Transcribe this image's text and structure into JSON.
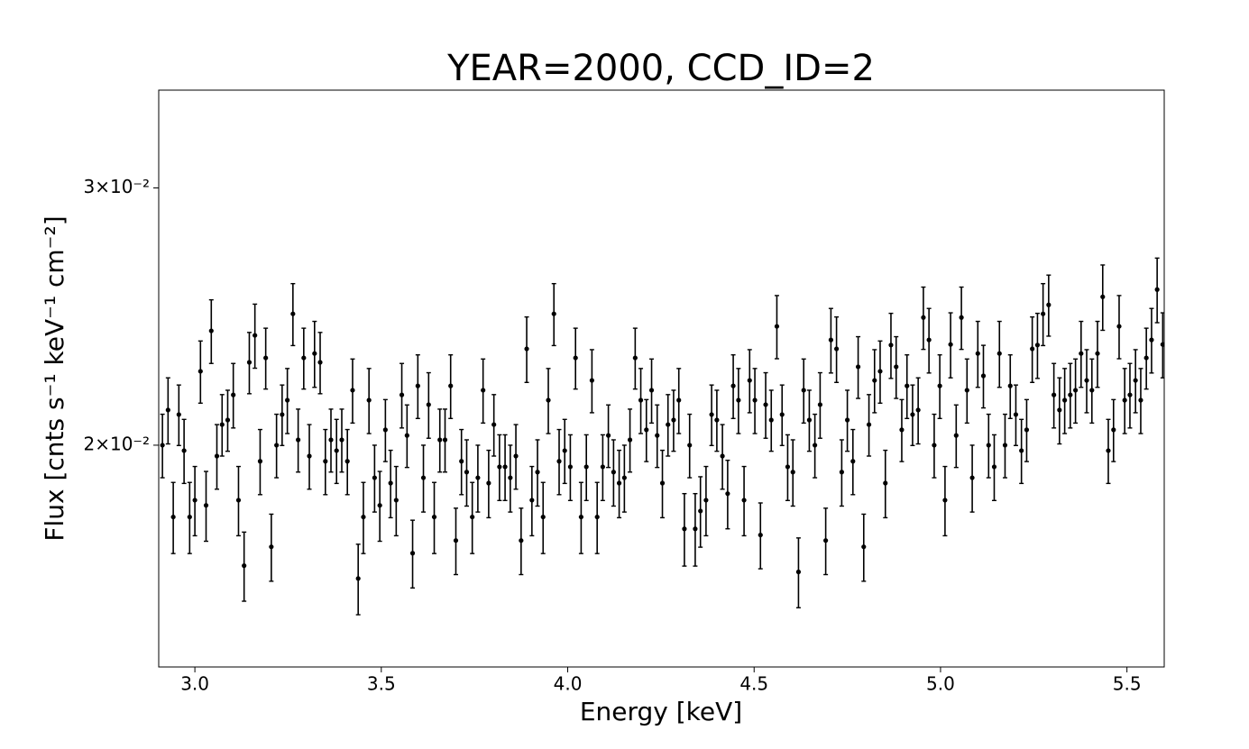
{
  "chart_data": {
    "type": "errorbar",
    "title": "YEAR=2000, CCD_ID=2",
    "xlabel": "Energy [keV]",
    "ylabel": "Flux [cnts s⁻¹ keV⁻¹ cm⁻²]",
    "yscale": "log",
    "color": "#000000",
    "xlim": [
      2.903,
      5.6
    ],
    "ylim": [
      0.0141,
      0.035
    ],
    "xticks": [
      {
        "value": 3,
        "label": "3.0"
      },
      3.5,
      {
        "value": 4,
        "label": "4.0"
      },
      4.5,
      {
        "value": 5,
        "label": "5.0"
      },
      5.5
    ],
    "yticks": [
      {
        "value": 0.02,
        "label": "2×10⁻²"
      },
      {
        "value": 0.03,
        "label": "3×10⁻²"
      }
    ],
    "x": [
      2.913,
      2.928,
      2.942,
      2.957,
      2.971,
      2.986,
      3.0,
      3.015,
      3.03,
      3.044,
      3.059,
      3.073,
      3.088,
      3.103,
      3.117,
      3.132,
      3.146,
      3.161,
      3.175,
      3.19,
      3.205,
      3.219,
      3.234,
      3.248,
      3.263,
      3.277,
      3.292,
      3.307,
      3.321,
      3.336,
      3.35,
      3.365,
      3.38,
      3.394,
      3.409,
      3.423,
      3.438,
      3.452,
      3.467,
      3.482,
      3.496,
      3.511,
      3.525,
      3.54,
      3.555,
      3.569,
      3.584,
      3.598,
      3.613,
      3.627,
      3.642,
      3.657,
      3.671,
      3.686,
      3.7,
      3.715,
      3.729,
      3.744,
      3.759,
      3.773,
      3.788,
      3.802,
      3.817,
      3.832,
      3.846,
      3.861,
      3.875,
      3.89,
      3.904,
      3.919,
      3.934,
      3.948,
      3.963,
      3.977,
      3.992,
      4.007,
      4.021,
      4.036,
      4.05,
      4.065,
      4.079,
      4.094,
      4.109,
      4.123,
      4.138,
      4.152,
      4.167,
      4.181,
      4.196,
      4.211,
      4.225,
      4.24,
      4.254,
      4.269,
      4.284,
      4.298,
      4.313,
      4.327,
      4.342,
      4.356,
      4.371,
      4.386,
      4.4,
      4.415,
      4.429,
      4.444,
      4.458,
      4.473,
      4.488,
      4.502,
      4.517,
      4.531,
      4.546,
      4.561,
      4.575,
      4.59,
      4.604,
      4.619,
      4.633,
      4.648,
      4.663,
      4.677,
      4.692,
      4.706,
      4.721,
      4.735,
      4.75,
      4.765,
      4.779,
      4.794,
      4.808,
      4.823,
      4.838,
      4.852,
      4.867,
      4.881,
      4.896,
      4.91,
      4.925,
      4.94,
      4.954,
      4.969,
      4.983,
      4.998,
      5.012,
      5.027,
      5.042,
      5.056,
      5.071,
      5.085,
      5.1,
      5.115,
      5.129,
      5.144,
      5.158,
      5.173,
      5.187,
      5.202,
      5.217,
      5.231,
      5.246,
      5.26,
      5.275,
      5.29,
      5.304,
      5.319,
      5.333,
      5.348,
      5.362,
      5.377,
      5.392,
      5.406,
      5.421,
      5.435,
      5.45,
      5.464,
      5.479,
      5.494,
      5.508,
      5.523,
      5.537,
      5.552,
      5.566,
      5.581,
      5.596
    ],
    "values": [
      0.02,
      0.02114,
      0.01786,
      0.02099,
      0.01983,
      0.01786,
      0.01834,
      0.02247,
      0.01819,
      0.02395,
      0.01966,
      0.02066,
      0.02081,
      0.02165,
      0.01834,
      0.01654,
      0.02279,
      0.02378,
      0.0195,
      0.02295,
      0.01704,
      0.02,
      0.02099,
      0.02147,
      0.0246,
      0.02017,
      0.02295,
      0.01966,
      0.02311,
      0.02279,
      0.0195,
      0.02017,
      0.01983,
      0.02017,
      0.0195,
      0.02181,
      0.01621,
      0.01786,
      0.02147,
      0.019,
      0.01819,
      0.02049,
      0.01884,
      0.01834,
      0.02165,
      0.02031,
      0.01687,
      0.02196,
      0.019,
      0.02132,
      0.01786,
      0.02017,
      0.02017,
      0.02196,
      0.01721,
      0.0195,
      0.01917,
      0.01786,
      0.019,
      0.02181,
      0.01884,
      0.02066,
      0.01933,
      0.01933,
      0.019,
      0.01966,
      0.01721,
      0.02328,
      0.01834,
      0.01917,
      0.01786,
      0.02147,
      0.0246,
      0.0195,
      0.01983,
      0.01933,
      0.02295,
      0.01786,
      0.01933,
      0.02215,
      0.01786,
      0.01933,
      0.02031,
      0.01917,
      0.01884,
      0.019,
      0.02017,
      0.02295,
      0.02147,
      0.02049,
      0.02181,
      0.02031,
      0.01884,
      0.02066,
      0.02081,
      0.02147,
      0.01753,
      0.02,
      0.01753,
      0.01803,
      0.01834,
      0.02099,
      0.02081,
      0.01966,
      0.01853,
      0.02196,
      0.02147,
      0.01834,
      0.02215,
      0.02147,
      0.01736,
      0.02132,
      0.02081,
      0.02412,
      0.02099,
      0.01933,
      0.01917,
      0.01638,
      0.02181,
      0.02081,
      0.02,
      0.02132,
      0.01721,
      0.02361,
      0.02328,
      0.01917,
      0.02081,
      0.0195,
      0.02263,
      0.01704,
      0.02066,
      0.02215,
      0.02247,
      0.01884,
      0.02342,
      0.02263,
      0.02049,
      0.02196,
      0.02099,
      0.02114,
      0.02446,
      0.02361,
      0.02,
      0.02196,
      0.01834,
      0.02344,
      0.02031,
      0.02446,
      0.02181,
      0.019,
      0.02311,
      0.02231,
      0.02,
      0.01933,
      0.02311,
      0.02,
      0.02196,
      0.02099,
      0.01983,
      0.02049,
      0.02328,
      0.02342,
      0.0246,
      0.02495,
      0.02165,
      0.02114,
      0.02147,
      0.02165,
      0.02181,
      0.02311,
      0.02215,
      0.02181,
      0.02311,
      0.02527,
      0.01983,
      0.02049,
      0.02412,
      0.02147,
      0.02165,
      0.02215,
      0.02147,
      0.02295,
      0.02361,
      0.02556,
      0.02344
    ],
    "errors": [
      0.001,
      0.0011,
      0.001,
      0.001,
      0.001,
      0.001,
      0.001,
      0.0011,
      0.001,
      0.0012,
      0.001,
      0.001,
      0.001,
      0.0011,
      0.001,
      0.0009,
      0.0011,
      0.0012,
      0.001,
      0.0011,
      0.0009,
      0.001,
      0.001,
      0.0011,
      0.0012,
      0.001,
      0.0011,
      0.001,
      0.0012,
      0.0011,
      0.001,
      0.001,
      0.001,
      0.001,
      0.001,
      0.0011,
      0.0009,
      0.001,
      0.0011,
      0.001,
      0.001,
      0.001,
      0.001,
      0.001,
      0.0011,
      0.001,
      0.0009,
      0.0011,
      0.001,
      0.0011,
      0.001,
      0.001,
      0.001,
      0.0011,
      0.0009,
      0.001,
      0.001,
      0.001,
      0.001,
      0.0011,
      0.001,
      0.001,
      0.001,
      0.001,
      0.001,
      0.001,
      0.0009,
      0.0012,
      0.001,
      0.001,
      0.001,
      0.0011,
      0.0012,
      0.001,
      0.001,
      0.001,
      0.0011,
      0.001,
      0.001,
      0.0011,
      0.001,
      0.001,
      0.001,
      0.001,
      0.001,
      0.001,
      0.001,
      0.0011,
      0.0011,
      0.001,
      0.0011,
      0.001,
      0.001,
      0.001,
      0.001,
      0.0011,
      0.001,
      0.001,
      0.001,
      0.001,
      0.001,
      0.001,
      0.001,
      0.001,
      0.001,
      0.0011,
      0.0011,
      0.001,
      0.0011,
      0.0011,
      0.0009,
      0.0011,
      0.001,
      0.0012,
      0.001,
      0.001,
      0.001,
      0.0009,
      0.0011,
      0.001,
      0.001,
      0.0011,
      0.0009,
      0.0012,
      0.0012,
      0.001,
      0.001,
      0.001,
      0.0011,
      0.0009,
      0.001,
      0.0011,
      0.0011,
      0.001,
      0.0012,
      0.0011,
      0.001,
      0.0011,
      0.001,
      0.0011,
      0.0012,
      0.0012,
      0.001,
      0.0011,
      0.001,
      0.0012,
      0.001,
      0.0012,
      0.0011,
      0.001,
      0.0012,
      0.0011,
      0.001,
      0.001,
      0.0012,
      0.001,
      0.0011,
      0.001,
      0.001,
      0.001,
      0.0012,
      0.0012,
      0.0012,
      0.0012,
      0.0011,
      0.0011,
      0.0011,
      0.0011,
      0.0011,
      0.0012,
      0.0011,
      0.0011,
      0.0012,
      0.0013,
      0.001,
      0.001,
      0.0012,
      0.0011,
      0.0011,
      0.0011,
      0.0011,
      0.0011,
      0.0012,
      0.0013,
      0.0012
    ]
  }
}
